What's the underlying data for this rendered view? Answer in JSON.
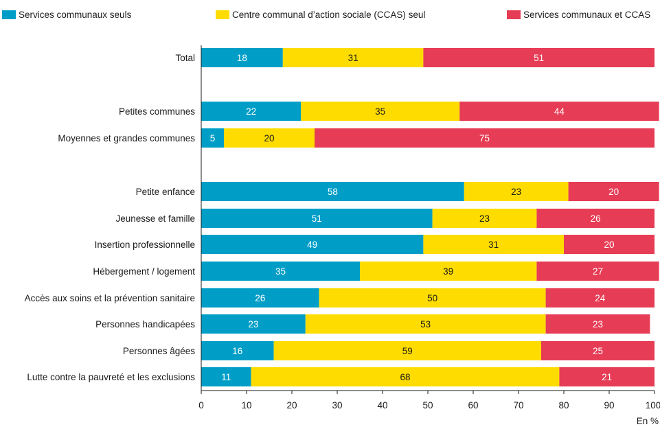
{
  "chart_data": {
    "type": "bar",
    "orientation": "horizontal",
    "stacked": true,
    "unit_label": "En %",
    "xlim": [
      0,
      100
    ],
    "x_ticks": [
      "0",
      "10",
      "20",
      "30",
      "40",
      "50",
      "60",
      "70",
      "80",
      "90",
      "100"
    ],
    "grid": false,
    "legend_position": "top",
    "categories": [
      "Total",
      "Petites communes",
      "Moyennes et grandes communes",
      "Petite enfance",
      "Jeunesse et famille",
      "Insertion professionnelle",
      "Hébergement / logement",
      "Accès aux soins et la prévention sanitaire",
      "Personnes handicapées",
      "Personnes âgées",
      "Lutte contre la pauvreté et les exclusions"
    ],
    "series": [
      {
        "name": "Services communaux seuls",
        "color": "#009ec7",
        "values": [
          18,
          22,
          5,
          58,
          51,
          49,
          35,
          26,
          23,
          16,
          11
        ]
      },
      {
        "name": "Centre communal d’action sociale (CCAS) seul",
        "color": "#ffdc00",
        "values": [
          31,
          35,
          20,
          23,
          23,
          31,
          39,
          50,
          53,
          59,
          68
        ]
      },
      {
        "name": "Services communaux et CCAS",
        "color": "#e63c55",
        "values": [
          51,
          44,
          75,
          20,
          26,
          20,
          27,
          24,
          23,
          25,
          21
        ]
      }
    ]
  }
}
